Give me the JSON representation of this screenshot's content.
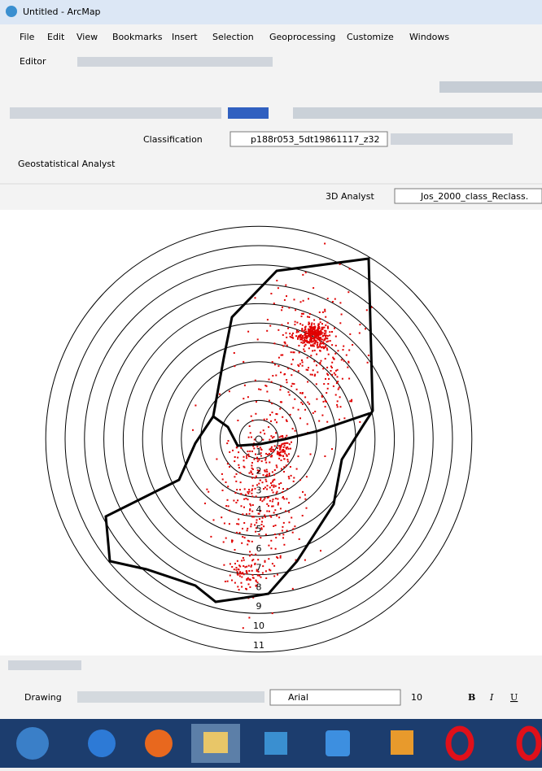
{
  "window": {
    "title": "Untitled - ArcMap"
  },
  "menu": [
    "File",
    "Edit",
    "View",
    "Bookmarks",
    "Insert",
    "Selection",
    "Geoprocessing",
    "Customize",
    "Windows"
  ],
  "toolbars": {
    "editor": "Editor",
    "classification": "Classification",
    "classification_layer": "p188r053_5dt19861117_z32",
    "geostatistical": "Geostatistical Analyst",
    "analyst3d": "3D Analyst",
    "analyst3d_layer": "Jos_2000_class_Reclass."
  },
  "map": {
    "ring_labels": [
      "1",
      "2",
      "3",
      "4",
      "5",
      "6",
      "7",
      "8",
      "9",
      "10",
      "11"
    ]
  },
  "drawing": {
    "label": "Drawing",
    "font": "Arial",
    "size": "10",
    "bold": "B",
    "italic": "I",
    "underline": "U"
  }
}
